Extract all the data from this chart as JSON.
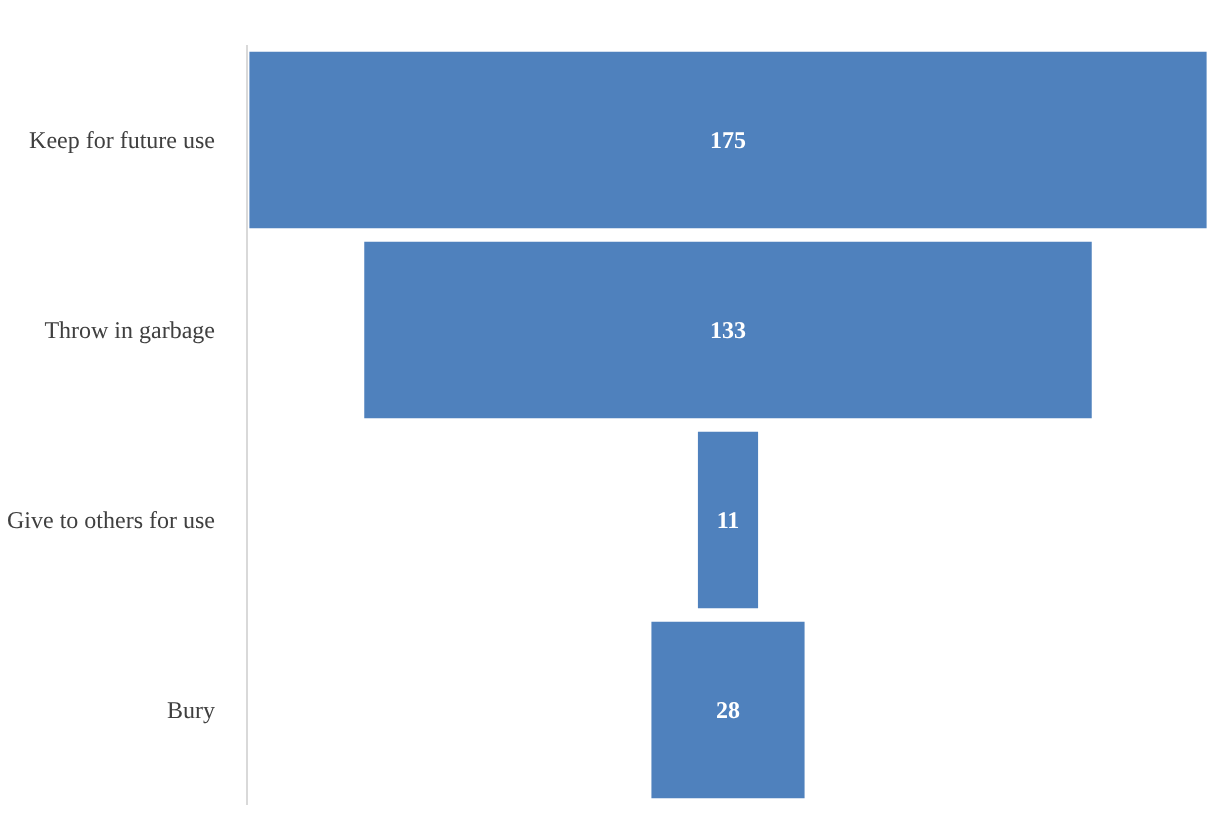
{
  "chart_data": {
    "type": "other",
    "categories": [
      "Keep for future use",
      "Throw in garbage",
      "Give to others for use",
      "Bury"
    ],
    "values": [
      175,
      133,
      11,
      28
    ],
    "color": "#4f81bd",
    "data_labels": true
  }
}
